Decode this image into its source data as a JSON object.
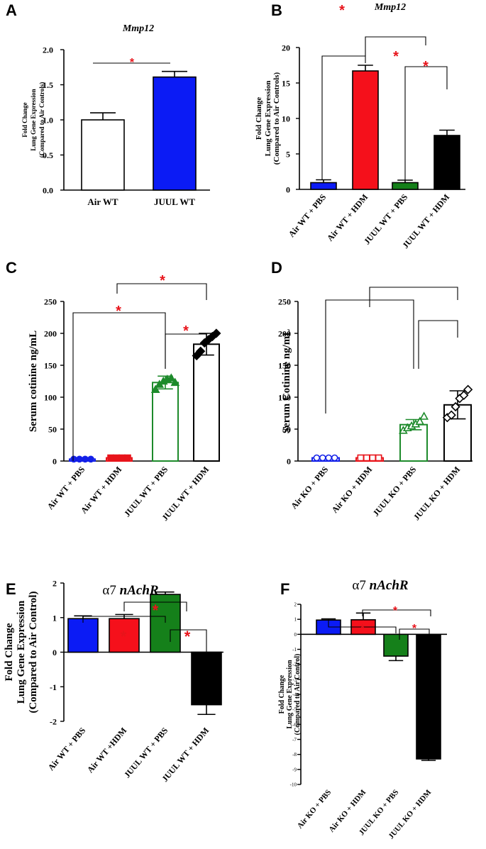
{
  "chart_data": [
    {
      "id": "A",
      "type": "bar",
      "title": "Mmp12",
      "ylabel": [
        "Fold Change",
        "Lung Gene Expression",
        "(Compared to Air Controls)"
      ],
      "ylim": [
        0,
        2.0
      ],
      "yticks": [
        "0.0",
        "0.5",
        "1.0",
        "1.5",
        "2.0"
      ],
      "categories": [
        "Air WT",
        "JUUL WT"
      ],
      "values": [
        1.0,
        1.61
      ],
      "errors": [
        0.1,
        0.08
      ],
      "colors": [
        "#ffffff",
        "#0b1bf5"
      ],
      "significance": [
        "*"
      ]
    },
    {
      "id": "B",
      "type": "bar",
      "title": "Mmp12",
      "ylabel": [
        "Fold Change",
        "Lung Gene Expression",
        "(Compared to Air Controls)"
      ],
      "ylim": [
        0,
        20
      ],
      "yticks": [
        "0",
        "5",
        "10",
        "15",
        "20"
      ],
      "categories": [
        "Air WT + PBS",
        "Air WT + HDM",
        "JUUL WT + PBS",
        "JUUL WT + HDM"
      ],
      "values": [
        0.95,
        16.7,
        0.95,
        7.6
      ],
      "errors": [
        0.4,
        0.8,
        0.35,
        0.75
      ],
      "colors": [
        "#0b1bf5",
        "#f5101b",
        "#15801a",
        "#000000"
      ],
      "significance": [
        "*",
        "*",
        "*"
      ]
    },
    {
      "id": "C",
      "type": "bar",
      "ylabel": [
        "Serum cotinine ng/mL"
      ],
      "ylim": [
        0,
        250
      ],
      "yticks": [
        "0",
        "50",
        "100",
        "150",
        "200",
        "250"
      ],
      "categories": [
        "Air WT + PBS",
        "Air WT + HDM",
        "JUUL WT + PBS",
        "JUUL WT + HDM"
      ],
      "values": [
        3,
        5,
        123,
        183
      ],
      "errors": [
        1,
        1,
        10,
        17
      ],
      "colors": [
        "#1320e8",
        "#e8141b",
        "#1d8a2b",
        "#000000"
      ],
      "points": [
        [
          3,
          3,
          3,
          3
        ],
        [
          5,
          5,
          5,
          5
        ],
        [
          112,
          120,
          125,
          128,
          130,
          123
        ],
        [
          165,
          172,
          185,
          190,
          195,
          200
        ]
      ],
      "significance": [
        "*",
        "*",
        "*"
      ]
    },
    {
      "id": "D",
      "type": "bar",
      "ylabel": [
        "Serum Cotinine ng/mL"
      ],
      "ylim": [
        0,
        250
      ],
      "yticks": [
        "0",
        "50",
        "100",
        "150",
        "200",
        "250"
      ],
      "categories": [
        "Air KO + PBS",
        "Air KO + HDM",
        "JUUL KO + PBS",
        "JUUL KO + HDM"
      ],
      "values": [
        5,
        5,
        57,
        88
      ],
      "errors": [
        1,
        1,
        8,
        22
      ],
      "colors": [
        "#1320e8",
        "#e8141b",
        "#1d8a2b",
        "#000000"
      ],
      "points": [
        [
          5,
          5,
          5,
          5
        ],
        [
          5,
          5,
          5,
          5
        ],
        [
          48,
          52,
          55,
          58,
          62,
          70
        ],
        [
          68,
          72,
          85,
          98,
          103,
          112
        ]
      ],
      "significance": []
    },
    {
      "id": "E",
      "type": "bar",
      "title": "α7 nAchR",
      "ylabel": [
        "Fold Change",
        "Lung Gene Expression",
        "(Compared to Air Control)"
      ],
      "ylim": [
        -2,
        2
      ],
      "yticks": [
        "-2",
        "-1",
        "0",
        "1",
        "2"
      ],
      "categories": [
        "Air WT + PBS",
        "Air WT +HDM",
        "JUUL WT + PBS",
        "JUUL WT + HDM"
      ],
      "values": [
        0.97,
        0.97,
        1.67,
        -1.52
      ],
      "errors": [
        0.08,
        0.12,
        0.07,
        0.28
      ],
      "colors": [
        "#0b1bf5",
        "#f5101b",
        "#15801a",
        "#000000"
      ],
      "significance": [
        "*",
        "*",
        "*"
      ]
    },
    {
      "id": "F",
      "type": "bar",
      "title": "α7 nAchR",
      "ylabel": [
        "Fold Change",
        "Lung Gene Expression",
        "(Compared to Air Control)"
      ],
      "ylim": [
        -10,
        2
      ],
      "yticks": [
        "2",
        "1",
        "0",
        "-1",
        "-2",
        "-3",
        "-4",
        "-5",
        "-6",
        "-7",
        "-8",
        "-9",
        "-10"
      ],
      "categories": [
        "Air KO + PBS",
        "Air KO + HDM",
        "JUUL KO + PBS",
        "JUUL KO + HDM"
      ],
      "values": [
        0.95,
        0.97,
        -1.45,
        -8.3
      ],
      "errors": [
        0.08,
        0.45,
        0.3,
        0.1
      ],
      "colors": [
        "#0b1bf5",
        "#f5101b",
        "#15801a",
        "#000000"
      ],
      "significance": [
        "*",
        "*",
        "*"
      ]
    }
  ]
}
